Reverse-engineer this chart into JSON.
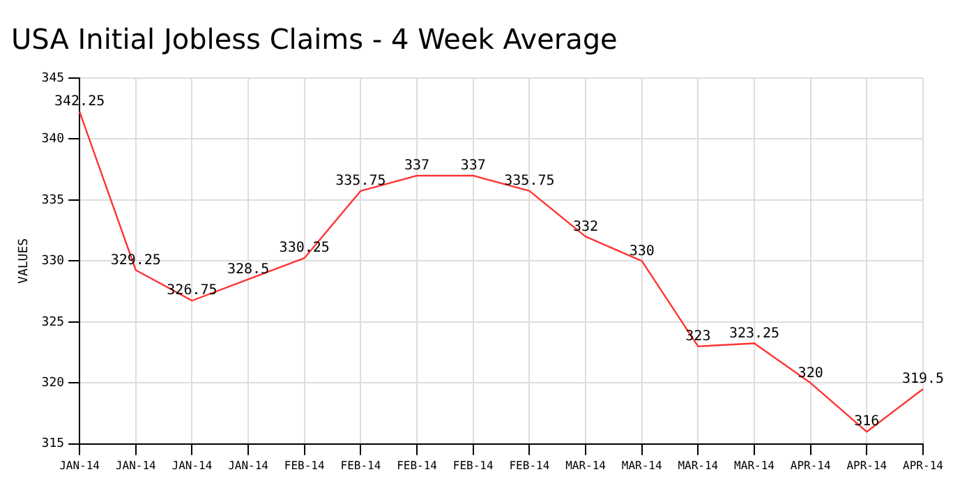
{
  "chart_data": {
    "type": "line",
    "title": "USA Initial Jobless Claims - 4 Week Average",
    "ylabel": "VALUES",
    "categories": [
      "JAN-14",
      "JAN-14",
      "JAN-14",
      "JAN-14",
      "FEB-14",
      "FEB-14",
      "FEB-14",
      "FEB-14",
      "FEB-14",
      "MAR-14",
      "MAR-14",
      "MAR-14",
      "MAR-14",
      "APR-14",
      "APR-14",
      "APR-14"
    ],
    "series": [
      {
        "color": "#ff3333",
        "values": [
          342.25,
          329.25,
          326.75,
          328.5,
          330.25,
          335.75,
          337,
          337,
          335.75,
          332,
          330,
          323,
          323.25,
          320,
          316,
          319.5
        ]
      }
    ],
    "ylim": [
      315,
      345
    ],
    "yticks": [
      315,
      320,
      325,
      330,
      335,
      340,
      345
    ],
    "grid": true,
    "data_labels": true,
    "marker": "none",
    "line_style": "solid"
  }
}
